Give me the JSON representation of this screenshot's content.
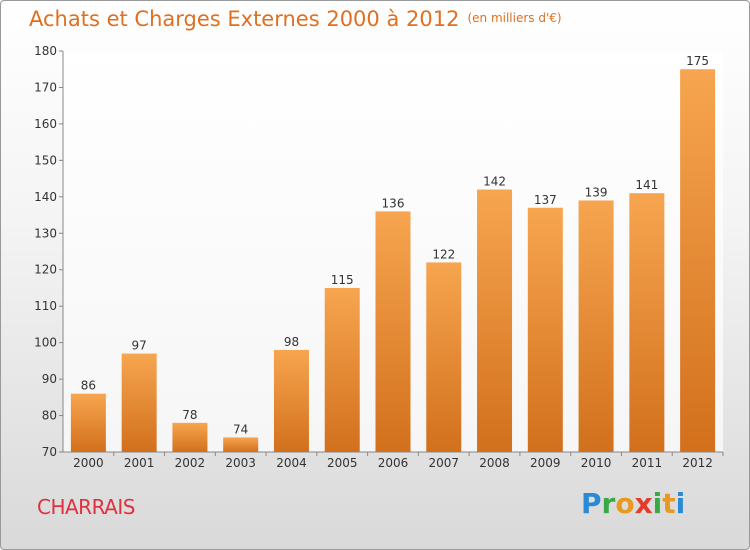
{
  "title": "Achats et Charges Externes 2000 à 2012",
  "unit": "(en milliers d'€)",
  "location": "CHARRAIS",
  "brand": "Proxiti",
  "colors": {
    "bar_light": "#f7a550",
    "bar_dark": "#d2701c",
    "title": "#e07020",
    "location": "#e03040"
  },
  "chart_data": {
    "type": "bar",
    "title": "Achats et Charges Externes 2000 à 2012",
    "subtitle": "(en milliers d'€)",
    "categories": [
      "2000",
      "2001",
      "2002",
      "2003",
      "2004",
      "2005",
      "2006",
      "2007",
      "2008",
      "2009",
      "2010",
      "2011",
      "2012"
    ],
    "values": [
      86,
      97,
      78,
      74,
      98,
      115,
      136,
      122,
      142,
      137,
      139,
      141,
      175
    ],
    "ylim": [
      70,
      180
    ],
    "yticks": [
      70,
      80,
      90,
      100,
      110,
      120,
      130,
      140,
      150,
      160,
      170,
      180
    ],
    "grid": false,
    "legend": "none"
  }
}
